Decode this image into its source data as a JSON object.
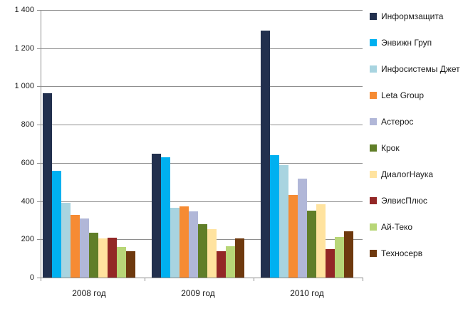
{
  "chart_data": {
    "type": "bar",
    "title": "",
    "xlabel": "",
    "ylabel": "",
    "categories": [
      "2008 год",
      "2009 год",
      "2010 год"
    ],
    "series": [
      {
        "name": "Информзащита",
        "color": "#22304E",
        "values": [
          965,
          648,
          1292
        ]
      },
      {
        "name": "Энвижн Груп",
        "color": "#00B0F0",
        "values": [
          560,
          630,
          640
        ]
      },
      {
        "name": "Инфосистемы Джет",
        "color": "#A8D4E0",
        "values": [
          390,
          365,
          590
        ]
      },
      {
        "name": "Leta Group",
        "color": "#F68B33",
        "values": [
          327,
          372,
          433
        ]
      },
      {
        "name": "Астерос",
        "color": "#B1B7D8",
        "values": [
          308,
          348,
          517
        ]
      },
      {
        "name": "Крок",
        "color": "#607E28",
        "values": [
          234,
          281,
          351
        ]
      },
      {
        "name": "ДиалогНаука",
        "color": "#FFE39F",
        "values": [
          206,
          254,
          384
        ]
      },
      {
        "name": "ЭлвисПлюс",
        "color": "#932726",
        "values": [
          208,
          137,
          150
        ]
      },
      {
        "name": "Ай-Теко",
        "color": "#B8D677",
        "values": [
          161,
          163,
          213
        ]
      },
      {
        "name": "Техносерв",
        "color": "#6E390E",
        "values": [
          138,
          204,
          243
        ]
      }
    ],
    "y_axis": {
      "min": 0,
      "max": 1400,
      "step": 200,
      "tick_labels": [
        "0",
        "200",
        "400",
        "600",
        "800",
        "1 000",
        "1 200",
        "1 400"
      ]
    },
    "legend_position": "right",
    "grid": true,
    "colors": {
      "gridline": "#8E8E8E",
      "axis": "#8E8E8E",
      "text": "#1a1a1a",
      "background": "#FFFFFF"
    }
  }
}
